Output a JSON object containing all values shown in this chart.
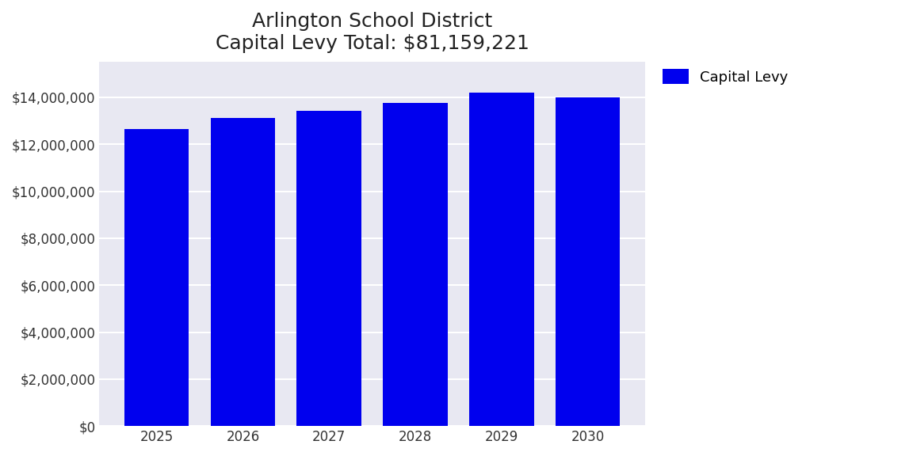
{
  "title_line1": "Arlington School District",
  "title_line2": "Capital Levy Total: $81,159,221",
  "years": [
    "2025",
    "2026",
    "2027",
    "2028",
    "2029",
    "2030"
  ],
  "values": [
    12659221,
    13109221,
    13409221,
    13759221,
    14209221,
    14013116
  ],
  "bar_color": "#0000ee",
  "legend_label": "Capital Levy",
  "ylim": [
    0,
    15500000
  ],
  "yticks": [
    0,
    2000000,
    4000000,
    6000000,
    8000000,
    10000000,
    12000000,
    14000000
  ],
  "background_color": "#e8e8f2",
  "figure_background": "#ffffff",
  "title_fontsize": 18,
  "tick_fontsize": 12,
  "legend_fontsize": 13,
  "bar_width": 0.75,
  "grid_color": "#ffffff",
  "grid_linewidth": 1.5
}
